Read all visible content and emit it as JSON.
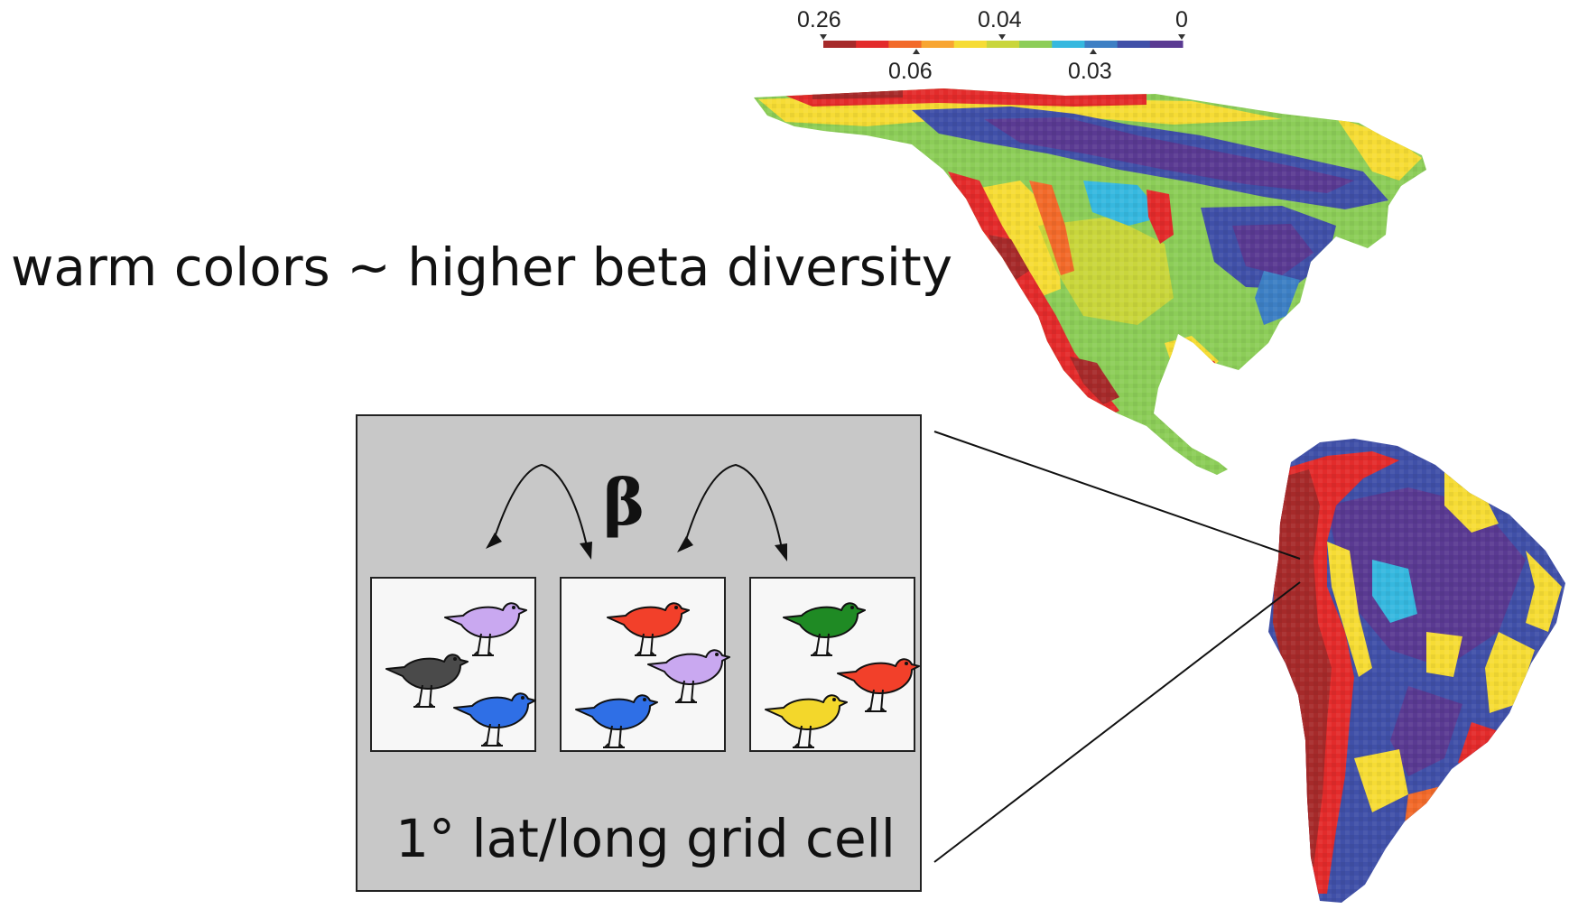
{
  "headline": "warm colors ~ higher beta diversity",
  "legend": {
    "top_ticks": [
      "0.26",
      "0.04",
      "0"
    ],
    "bottom_ticks": [
      "0.06",
      "0.03"
    ],
    "colors": [
      "#a62a2a",
      "#e32b2b",
      "#f26a2a",
      "#f8a531",
      "#f6dc35",
      "#c9d63c",
      "#8ccd58",
      "#36b8df",
      "#3d7fc4",
      "#4050a8",
      "#5a3a92"
    ]
  },
  "inset": {
    "beta_symbol": "β",
    "caption": "1° lat/long grid cell",
    "panels": [
      {
        "birds": [
          "#c9a8f0",
          "#4a4a4a",
          "#2f6fe6"
        ]
      },
      {
        "birds": [
          "#f2402a",
          "#c9a8f0",
          "#2f6fe6"
        ]
      },
      {
        "birds": [
          "#1f8a24",
          "#f2402a",
          "#f3d72b"
        ]
      }
    ]
  }
}
